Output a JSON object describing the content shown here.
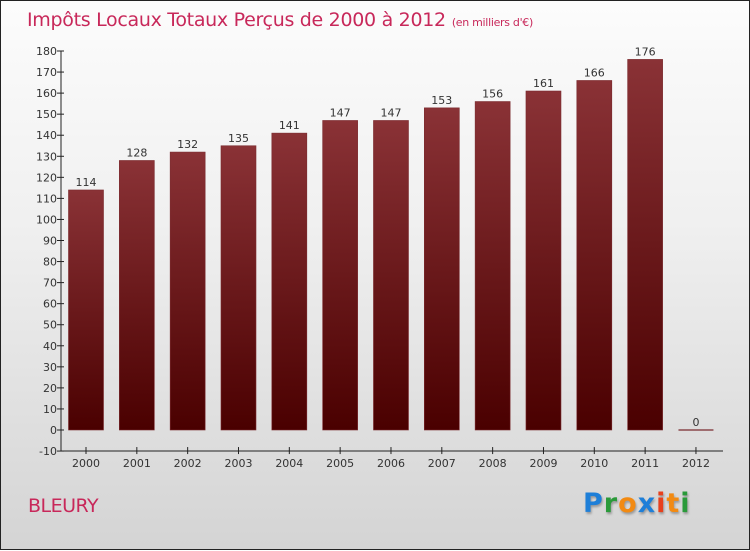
{
  "chart_data": {
    "type": "bar",
    "title": "Impôts Locaux Totaux Perçus de 2000 à 2012",
    "subtitle": "(en milliers d'€)",
    "categories": [
      "2000",
      "2001",
      "2002",
      "2003",
      "2004",
      "2005",
      "2006",
      "2007",
      "2008",
      "2009",
      "2010",
      "2011",
      "2012"
    ],
    "values": [
      114,
      128,
      132,
      135,
      141,
      147,
      147,
      153,
      156,
      161,
      166,
      176,
      0
    ],
    "ylim": [
      -10,
      180
    ],
    "yticks": [
      -10,
      0,
      10,
      20,
      30,
      40,
      50,
      60,
      70,
      80,
      90,
      100,
      110,
      120,
      130,
      140,
      150,
      160,
      170,
      180
    ],
    "xlabel": "",
    "ylabel": "",
    "grid": false,
    "bar_color_top": "#8a3236",
    "bar_color_bottom": "#4a0000"
  },
  "commune": "BLEURY",
  "logo": "Proxiti"
}
